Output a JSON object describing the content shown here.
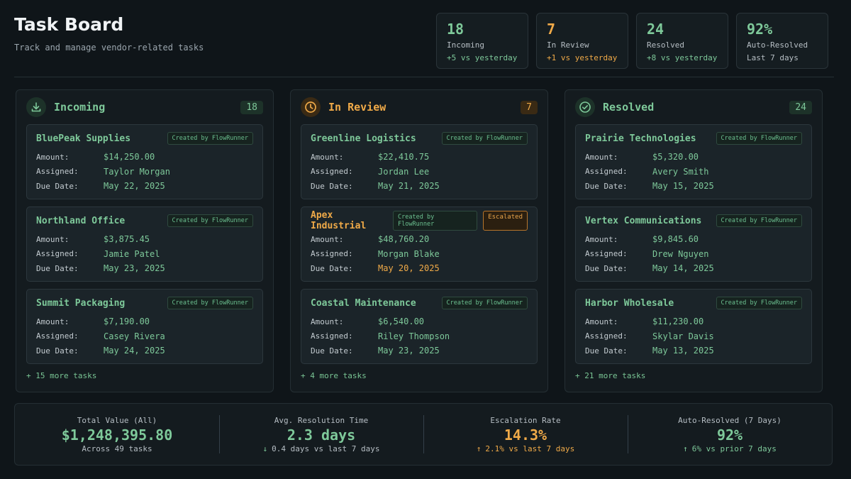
{
  "header": {
    "title": "Task Board",
    "subtitle": "Track and manage vendor-related tasks"
  },
  "stats": [
    {
      "value": "18",
      "label": "Incoming",
      "sub": "+5 vs yesterday",
      "color": "#7ec99a",
      "sub_color": "#7ec99a"
    },
    {
      "value": "7",
      "label": "In Review",
      "sub": "+1 vs yesterday",
      "color": "#f0aa48",
      "sub_color": "#f0aa48"
    },
    {
      "value": "24",
      "label": "Resolved",
      "sub": "+8 vs yesterday",
      "color": "#7ec99a",
      "sub_color": "#7ec99a"
    },
    {
      "value": "92%",
      "label": "Auto-Resolved",
      "sub": "Last 7 days",
      "color": "#7ec99a",
      "sub_color": "#b6bec4"
    }
  ],
  "labels": {
    "amount": "Amount:",
    "assigned": "Assigned:",
    "due": "Due Date:",
    "created_badge": "Created by FlowRunner",
    "escalated_badge": "Escalated"
  },
  "columns": [
    {
      "title": "Incoming",
      "count": "18",
      "icon": "download-icon",
      "color": "#7ec99a",
      "more": "+ 15 more tasks",
      "cards": [
        {
          "vendor": "BluePeak Supplies",
          "amount": "$14,250.00",
          "assigned": "Taylor Morgan",
          "due": "May 22, 2025"
        },
        {
          "vendor": "Northland Office",
          "amount": "$3,875.45",
          "assigned": "Jamie Patel",
          "due": "May 23, 2025"
        },
        {
          "vendor": "Summit Packaging",
          "amount": "$7,190.00",
          "assigned": "Casey Rivera",
          "due": "May 24, 2025"
        }
      ]
    },
    {
      "title": "In Review",
      "count": "7",
      "icon": "clock-icon",
      "color": "#f0aa48",
      "more": "+ 4 more tasks",
      "cards": [
        {
          "vendor": "Greenline Logistics",
          "amount": "$22,410.75",
          "assigned": "Jordan Lee",
          "due": "May 21, 2025"
        },
        {
          "vendor": "Apex Industrial",
          "amount": "$48,760.20",
          "assigned": "Morgan Blake",
          "due": "May 20, 2025",
          "escalated": true
        },
        {
          "vendor": "Coastal Maintenance",
          "amount": "$6,540.00",
          "assigned": "Riley Thompson",
          "due": "May 23, 2025"
        }
      ]
    },
    {
      "title": "Resolved",
      "count": "24",
      "icon": "check-circle-icon",
      "color": "#7ec99a",
      "more": "+ 21 more tasks",
      "cards": [
        {
          "vendor": "Prairie Technologies",
          "amount": "$5,320.00",
          "assigned": "Avery Smith",
          "due": "May 15, 2025"
        },
        {
          "vendor": "Vertex Communications",
          "amount": "$9,845.60",
          "assigned": "Drew Nguyen",
          "due": "May 14, 2025"
        },
        {
          "vendor": "Harbor Wholesale",
          "amount": "$11,230.00",
          "assigned": "Skylar Davis",
          "due": "May 13, 2025"
        }
      ]
    }
  ],
  "footer": [
    {
      "label": "Total Value (All)",
      "value": "$1,248,395.80",
      "sub": "Across 49 tasks",
      "color": "#7ec99a",
      "arrow": ""
    },
    {
      "label": "Avg. Resolution Time",
      "value": "2.3 days",
      "sub": "0.4 days vs last 7 days",
      "color": "#7ec99a",
      "arrow": "↓",
      "arrow_color": "#7ec99a"
    },
    {
      "label": "Escalation Rate",
      "value": "14.3%",
      "sub": "2.1% vs last 7 days",
      "color": "#f0aa48",
      "arrow": "↑",
      "arrow_color": "#f0aa48"
    },
    {
      "label": "Auto-Resolved (7 Days)",
      "value": "92%",
      "sub": "6% vs prior 7 days",
      "color": "#7ec99a",
      "arrow": "↑",
      "arrow_color": "#7ec99a"
    }
  ]
}
